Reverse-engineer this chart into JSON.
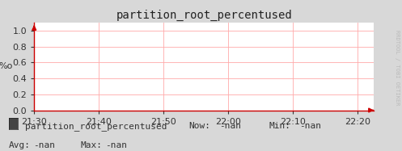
{
  "title": "partition_root_percentused",
  "bg_color": "#d8d8d8",
  "plot_bg_color": "#ffffff",
  "grid_color": "#ffaaaa",
  "axis_color": "#cc0000",
  "tick_color": "#333333",
  "title_color": "#222222",
  "ylabel": "%o",
  "ylim": [
    0.0,
    1.1
  ],
  "yticks": [
    0.0,
    0.2,
    0.4,
    0.6,
    0.8,
    1.0
  ],
  "xlim_start": 77400,
  "xlim_end": 80550,
  "xtick_values": [
    77400,
    78000,
    78600,
    79200,
    79800,
    80400
  ],
  "xtick_labels": [
    "21:30",
    "21:40",
    "21:50",
    "22:00",
    "22:10",
    "22:20"
  ],
  "legend_label": "partition_root_percentused",
  "legend_box_color": "#444444",
  "now_val": "-nan",
  "min_val": "-nan",
  "avg_val": "-nan",
  "max_val": "-nan",
  "watermark": "RRDTOOL / TOBI OETIKER",
  "watermark_color": "#bbbbbb",
  "arrow_color": "#cc0000",
  "font_size": 8,
  "title_font_size": 10
}
